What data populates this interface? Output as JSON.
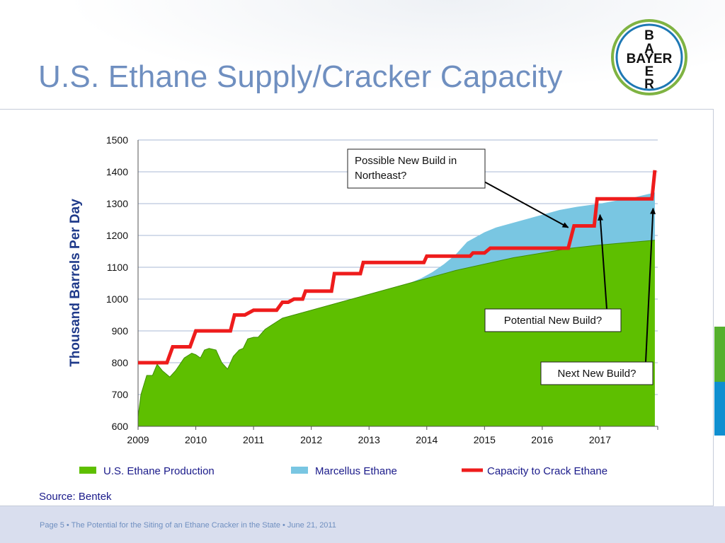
{
  "slide": {
    "title": "U.S. Ethane Supply/Cracker Capacity",
    "source": "Source: Bentek",
    "footer": "Page 5 • The Potential for the Siting of an Ethane Cracker in the State • June 21, 2011",
    "logo_letters": {
      "top": [
        "B",
        "A"
      ],
      "middle": "BAYER",
      "bottom": [
        "E",
        "R"
      ]
    }
  },
  "colors": {
    "title": "#6f8fc0",
    "production": "#5ebf00",
    "marcellus": "#79c6e2",
    "capacity": "#ee1c1c",
    "gridline": "#a9b9d6",
    "logo_ring_outer": "#7fb342",
    "logo_ring_inner": "#1e78b4"
  },
  "chart_data": {
    "type": "area",
    "xlabel": "",
    "ylabel": "Thousand Barrels Per Day",
    "xlim": [
      2009,
      2018
    ],
    "ylim": [
      600,
      1500
    ],
    "yticks": [
      600,
      700,
      800,
      900,
      1000,
      1100,
      1200,
      1300,
      1400,
      1500
    ],
    "xticks": [
      "2009",
      "2010",
      "2011",
      "2012",
      "2013",
      "2014",
      "2015",
      "2016",
      "2017"
    ],
    "grid": true,
    "legend_position": "bottom",
    "series": [
      {
        "name": "U.S. Ethane Production",
        "kind": "area",
        "color_key": "production",
        "x": [
          2009.0,
          2009.05,
          2009.15,
          2009.25,
          2009.33,
          2009.42,
          2009.55,
          2009.65,
          2009.8,
          2009.93,
          2010.0,
          2010.08,
          2010.15,
          2010.23,
          2010.35,
          2010.45,
          2010.55,
          2010.65,
          2010.75,
          2010.82,
          2010.9,
          2011.0,
          2011.08,
          2011.2,
          2011.5,
          2012.0,
          2012.5,
          2013.0,
          2013.5,
          2014.0,
          2014.5,
          2015.0,
          2015.5,
          2016.0,
          2016.5,
          2017.0,
          2017.5,
          2017.95
        ],
        "values": [
          630,
          700,
          760,
          760,
          795,
          775,
          755,
          775,
          815,
          830,
          825,
          815,
          840,
          845,
          840,
          800,
          780,
          820,
          840,
          845,
          875,
          880,
          880,
          905,
          940,
          965,
          990,
          1015,
          1040,
          1065,
          1090,
          1110,
          1130,
          1145,
          1160,
          1170,
          1178,
          1185
        ]
      },
      {
        "name": "Marcellus Ethane",
        "kind": "area",
        "color_key": "marcellus",
        "x": [
          2013.5,
          2013.7,
          2013.9,
          2014.1,
          2014.3,
          2014.5,
          2014.7,
          2014.9,
          2015.0,
          2015.2,
          2015.4,
          2015.6,
          2015.8,
          2016.0,
          2016.3,
          2016.6,
          2017.0,
          2017.3,
          2017.6,
          2017.95
        ],
        "values": [
          1040,
          1050,
          1065,
          1085,
          1110,
          1140,
          1180,
          1200,
          1210,
          1225,
          1235,
          1245,
          1255,
          1265,
          1280,
          1290,
          1300,
          1310,
          1320,
          1335
        ]
      },
      {
        "name": "Capacity to Crack Ethane",
        "kind": "step-line",
        "color_key": "capacity",
        "x": [
          2009.0,
          2009.5,
          2009.6,
          2009.9,
          2010.0,
          2010.6,
          2010.67,
          2010.85,
          2011.0,
          2011.4,
          2011.5,
          2011.6,
          2011.7,
          2011.85,
          2011.9,
          2012.35,
          2012.4,
          2012.85,
          2012.9,
          2013.95,
          2014.0,
          2014.75,
          2014.8,
          2015.0,
          2015.1,
          2016.45,
          2016.55,
          2016.9,
          2016.95,
          2017.9,
          2017.95
        ],
        "values": [
          800,
          800,
          850,
          850,
          900,
          900,
          950,
          950,
          965,
          965,
          990,
          990,
          1000,
          1000,
          1025,
          1025,
          1080,
          1080,
          1115,
          1115,
          1135,
          1135,
          1145,
          1145,
          1160,
          1160,
          1230,
          1230,
          1315,
          1315,
          1405
        ]
      }
    ],
    "annotations": [
      {
        "text_lines": [
          "Possible New Build in",
          "Northeast?"
        ],
        "points_to": [
          2016.45,
          1225
        ]
      },
      {
        "text_lines": [
          "Potential New Build?"
        ],
        "points_to": [
          2017.0,
          1265
        ]
      },
      {
        "text_lines": [
          "Next New Build?"
        ],
        "points_to": [
          2017.92,
          1285
        ]
      }
    ]
  }
}
